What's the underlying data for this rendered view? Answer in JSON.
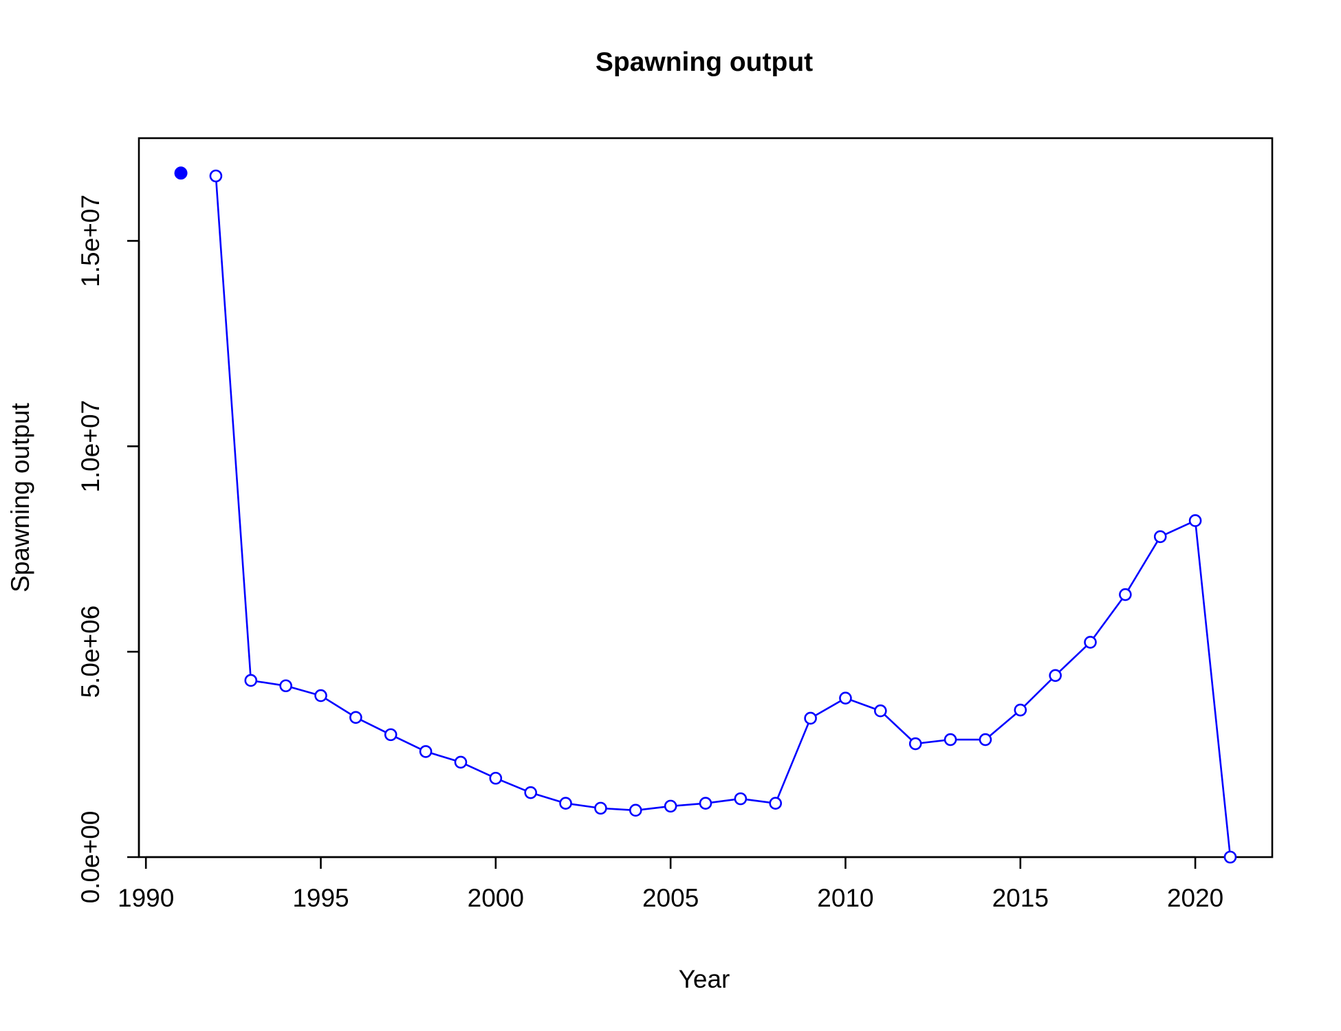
{
  "chart_data": {
    "type": "line",
    "title": "Spawning output",
    "xlabel": "Year",
    "ylabel": "Spawning output",
    "xlim": [
      1989.8,
      2022.2
    ],
    "ylim": [
      0,
      17500000
    ],
    "xticks": [
      1990,
      1995,
      2000,
      2005,
      2010,
      2015,
      2020
    ],
    "xtick_labels": [
      "1990",
      "1995",
      "2000",
      "2005",
      "2010",
      "2015",
      "2020"
    ],
    "yticks": [
      0,
      5000000,
      10000000,
      15000000
    ],
    "ytick_labels": [
      "0.0e+00",
      "5.0e+06",
      "1.0e+07",
      "1.5e+07"
    ],
    "grid": false,
    "legend": "none",
    "color": "#0000ff",
    "virgin_point": {
      "x": 1991,
      "y": 16650000,
      "marker": "filled-circle"
    },
    "series": [
      {
        "marker": "open-circle",
        "x": [
          1992,
          1993,
          1994,
          1995,
          1996,
          1997,
          1998,
          1999,
          2000,
          2001,
          2002,
          2003,
          2004,
          2005,
          2006,
          2007,
          2008,
          2009,
          2010,
          2011,
          2012,
          2013,
          2014,
          2015,
          2016,
          2017,
          2018,
          2019,
          2020,
          2021
        ],
        "values": [
          16580000,
          4300000,
          4170000,
          3930000,
          3400000,
          2980000,
          2570000,
          2310000,
          1920000,
          1570000,
          1310000,
          1190000,
          1140000,
          1240000,
          1310000,
          1420000,
          1310000,
          3380000,
          3870000,
          3560000,
          2760000,
          2860000,
          2860000,
          3580000,
          4420000,
          5230000,
          6390000,
          7800000,
          8190000,
          0
        ]
      }
    ]
  }
}
